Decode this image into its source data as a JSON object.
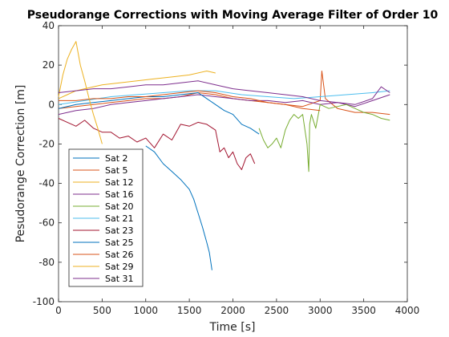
{
  "chart_data": {
    "type": "line",
    "title": "Pseudorange Corrections with Moving Average Filter of Order 10",
    "xlabel": "Time [s]",
    "ylabel": "Pesudorange Correction [m]",
    "xlim": [
      0,
      4000
    ],
    "ylim": [
      -100,
      40
    ],
    "xticks": [
      0,
      500,
      1000,
      1500,
      2000,
      2500,
      3000,
      3500,
      4000
    ],
    "yticks": [
      -100,
      -80,
      -60,
      -40,
      -20,
      0,
      20,
      40
    ],
    "grid": false,
    "legend_position": "bottom-left",
    "series": [
      {
        "name": "Sat 2",
        "color": "#0072BD",
        "x": [
          1000,
          1100,
          1200,
          1300,
          1400,
          1500,
          1550,
          1600,
          1650,
          1700,
          1730,
          1760
        ],
        "y": [
          -21,
          -24,
          -30,
          -34,
          -38,
          -43,
          -48,
          -55,
          -62,
          -70,
          -75,
          -84
        ]
      },
      {
        "name": "Sat 5",
        "color": "#D95319",
        "x": [
          0,
          200,
          400,
          600,
          800,
          1000,
          1200,
          1400,
          1600,
          1800,
          2000,
          2200,
          2400,
          2600,
          2800,
          3000,
          3020,
          3060,
          3200,
          3400,
          3600,
          3800
        ],
        "y": [
          -2,
          -1,
          0,
          1,
          2,
          3,
          3,
          4,
          6,
          5,
          3,
          2,
          1,
          0,
          -1,
          2,
          17,
          3,
          -2,
          -4,
          -4,
          -5
        ]
      },
      {
        "name": "Sat 12",
        "color": "#EDB120",
        "x": [
          0,
          100,
          200,
          300,
          500,
          700,
          900,
          1100,
          1300,
          1500,
          1700,
          1800
        ],
        "y": [
          3,
          5,
          7,
          8,
          10,
          11,
          12,
          13,
          14,
          15,
          17,
          16
        ]
      },
      {
        "name": "Sat 16",
        "color": "#7E2F8E",
        "x": [
          0,
          200,
          400,
          600,
          800,
          1000,
          1200,
          1400,
          1600,
          1800,
          2000,
          2200,
          2400,
          2600,
          2800,
          3000,
          3200,
          3400,
          3600,
          3800
        ],
        "y": [
          -5,
          -3,
          -2,
          0,
          1,
          2,
          3,
          4,
          5,
          4,
          3,
          2,
          2,
          1,
          2,
          0,
          1,
          -1,
          2,
          5
        ]
      },
      {
        "name": "Sat 20",
        "color": "#77AC30",
        "x": [
          2300,
          2350,
          2400,
          2450,
          2500,
          2550,
          2600,
          2650,
          2700,
          2750,
          2800,
          2850,
          2870,
          2880,
          2900,
          2950,
          3000,
          3100,
          3200,
          3300,
          3400,
          3500,
          3600,
          3700,
          3800
        ],
        "y": [
          -12,
          -18,
          -22,
          -20,
          -17,
          -22,
          -13,
          -8,
          -5,
          -7,
          -5,
          -20,
          -34,
          -10,
          -5,
          -12,
          0,
          -2,
          -1,
          0,
          -2,
          -4,
          -5,
          -7,
          -8
        ]
      },
      {
        "name": "Sat 21",
        "color": "#4DBEEE",
        "x": [
          0,
          300,
          600,
          900,
          1200,
          1500,
          1800,
          2100,
          2400,
          2700,
          3000,
          3300,
          3600,
          3800
        ],
        "y": [
          0,
          2,
          4,
          5,
          6,
          7,
          7,
          5,
          4,
          3,
          4,
          5,
          6,
          7
        ]
      },
      {
        "name": "Sat 23",
        "color": "#A2142F",
        "x": [
          0,
          100,
          200,
          300,
          400,
          500,
          600,
          700,
          800,
          900,
          1000,
          1100,
          1200,
          1300,
          1400,
          1500,
          1600,
          1700,
          1800,
          1850,
          1900,
          1950,
          2000,
          2050,
          2100,
          2150,
          2200,
          2250
        ],
        "y": [
          -7,
          -9,
          -11,
          -8,
          -12,
          -14,
          -14,
          -17,
          -16,
          -19,
          -17,
          -22,
          -15,
          -18,
          -10,
          -11,
          -9,
          -10,
          -13,
          -24,
          -22,
          -27,
          -24,
          -30,
          -33,
          -27,
          -25,
          -30
        ]
      },
      {
        "name": "Sat 25",
        "color": "#0072BD",
        "x": [
          0,
          200,
          400,
          600,
          800,
          1000,
          1200,
          1400,
          1600,
          1800,
          1900,
          2000,
          2100,
          2200,
          2300
        ],
        "y": [
          -2,
          0,
          1,
          2,
          3,
          4,
          4,
          5,
          6,
          0,
          -3,
          -5,
          -10,
          -12,
          -15
        ]
      },
      {
        "name": "Sat 26",
        "color": "#D95319",
        "x": [
          0,
          200,
          400,
          600,
          800,
          1000,
          1200,
          1400,
          1600,
          1800,
          2000,
          2200,
          2400,
          2600,
          2800,
          3000
        ],
        "y": [
          2,
          2,
          3,
          3,
          4,
          4,
          5,
          6,
          7,
          6,
          4,
          3,
          1,
          0,
          -2,
          -3
        ]
      },
      {
        "name": "Sat 29",
        "color": "#EDB120",
        "x": [
          0,
          50,
          100,
          150,
          200,
          250,
          300,
          350,
          400,
          450,
          500
        ],
        "y": [
          4,
          15,
          23,
          28,
          32,
          20,
          12,
          3,
          -5,
          -12,
          -20
        ]
      },
      {
        "name": "Sat 31",
        "color": "#7E2F8E",
        "x": [
          0,
          200,
          400,
          600,
          800,
          1000,
          1200,
          1400,
          1600,
          1800,
          2000,
          2200,
          2400,
          2600,
          2800,
          3000,
          3200,
          3400,
          3600,
          3700,
          3800
        ],
        "y": [
          6,
          7,
          8,
          8,
          9,
          10,
          10,
          11,
          12,
          10,
          8,
          7,
          6,
          5,
          4,
          2,
          1,
          0,
          3,
          9,
          6
        ]
      }
    ]
  }
}
